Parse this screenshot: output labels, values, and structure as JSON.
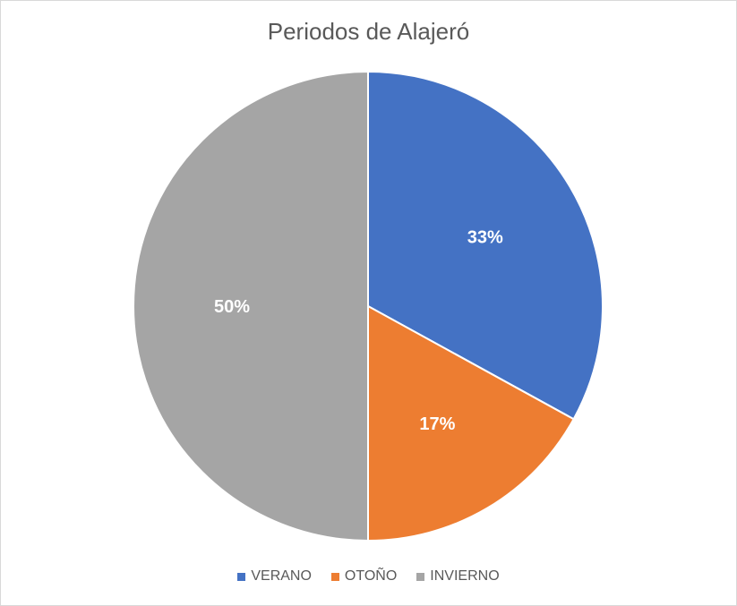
{
  "chart_data": {
    "type": "pie",
    "title": "Periodos de Alajeró",
    "categories": [
      "VERANO",
      "OTOÑO",
      "INVIERNO"
    ],
    "values": [
      33,
      17,
      50
    ],
    "data_labels": [
      "33%",
      "17%",
      "50%"
    ],
    "colors": [
      "#4472c4",
      "#ed7d31",
      "#a5a5a5"
    ],
    "legend_position": "bottom",
    "start_angle": "top, clockwise"
  }
}
